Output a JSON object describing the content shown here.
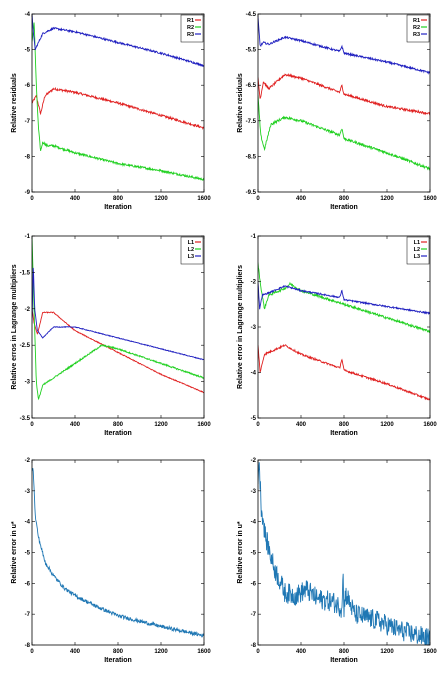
{
  "chart_data": [
    {
      "type": "line",
      "xlabel": "Iteration",
      "ylabel": "Relative residuals",
      "xlim": [
        0,
        1600
      ],
      "ylim": [
        -9,
        -4
      ],
      "xticks": [
        0,
        400,
        800,
        1200,
        1600
      ],
      "yticks": [
        -9,
        -8,
        -7,
        -6,
        -5,
        -4
      ],
      "xtick_labels": [
        "0",
        "400",
        "800",
        "1200",
        "1600"
      ],
      "ytick_labels": [
        "-9",
        "-8",
        "-7",
        "-6",
        "-5",
        "-4"
      ],
      "legend_position": "top-right",
      "series": [
        {
          "name": "R1",
          "color": "#e02020",
          "noise": 0.03,
          "points": [
            [
              0,
              -6.5
            ],
            [
              40,
              -6.3
            ],
            [
              80,
              -6.8
            ],
            [
              120,
              -6.3
            ],
            [
              200,
              -6.1
            ],
            [
              400,
              -6.2
            ],
            [
              800,
              -6.5
            ],
            [
              1200,
              -6.85
            ],
            [
              1600,
              -7.2
            ]
          ]
        },
        {
          "name": "R2",
          "color": "#20d020",
          "noise": 0.03,
          "points": [
            [
              0,
              -4.8
            ],
            [
              20,
              -4.2
            ],
            [
              40,
              -6.0
            ],
            [
              60,
              -7.2
            ],
            [
              80,
              -7.85
            ],
            [
              100,
              -7.6
            ],
            [
              140,
              -7.7
            ],
            [
              200,
              -7.7
            ],
            [
              400,
              -7.9
            ],
            [
              800,
              -8.2
            ],
            [
              1200,
              -8.4
            ],
            [
              1600,
              -8.65
            ]
          ]
        },
        {
          "name": "R3",
          "color": "#2020c0",
          "noise": 0.025,
          "points": [
            [
              0,
              -4.0
            ],
            [
              15,
              -4.6
            ],
            [
              30,
              -5.0
            ],
            [
              60,
              -4.8
            ],
            [
              100,
              -4.55
            ],
            [
              200,
              -4.4
            ],
            [
              400,
              -4.5
            ],
            [
              800,
              -4.8
            ],
            [
              1200,
              -5.1
            ],
            [
              1600,
              -5.45
            ]
          ]
        }
      ]
    },
    {
      "type": "line",
      "xlabel": "Iteration",
      "ylabel": "Relative residuals",
      "xlim": [
        0,
        1600
      ],
      "ylim": [
        -9.5,
        -4.5
      ],
      "xticks": [
        0,
        400,
        800,
        1200,
        1600
      ],
      "yticks": [
        -9.5,
        -8.5,
        -7.5,
        -6.5,
        -5.5,
        -4.5
      ],
      "xtick_labels": [
        "0",
        "400",
        "800",
        "1200",
        "1600"
      ],
      "ytick_labels": [
        "-9.5",
        "-8.5",
        "-7.5",
        "-6.5",
        "-5.5",
        "-4.5"
      ],
      "legend_position": "top-right",
      "series": [
        {
          "name": "R1",
          "color": "#e02020",
          "noise": 0.03,
          "points": [
            [
              0,
              -6.3
            ],
            [
              20,
              -6.9
            ],
            [
              50,
              -6.4
            ],
            [
              100,
              -6.6
            ],
            [
              250,
              -6.2
            ],
            [
              400,
              -6.3
            ],
            [
              760,
              -6.7
            ],
            [
              780,
              -6.5
            ],
            [
              800,
              -6.75
            ],
            [
              1200,
              -7.1
            ],
            [
              1600,
              -7.3
            ]
          ]
        },
        {
          "name": "R2",
          "color": "#20d020",
          "noise": 0.035,
          "points": [
            [
              0,
              -6.8
            ],
            [
              25,
              -7.9
            ],
            [
              60,
              -8.3
            ],
            [
              120,
              -7.6
            ],
            [
              250,
              -7.4
            ],
            [
              400,
              -7.5
            ],
            [
              760,
              -7.9
            ],
            [
              780,
              -7.7
            ],
            [
              800,
              -8.0
            ],
            [
              1200,
              -8.4
            ],
            [
              1600,
              -8.85
            ]
          ]
        },
        {
          "name": "R3",
          "color": "#2020c0",
          "noise": 0.025,
          "points": [
            [
              0,
              -4.6
            ],
            [
              20,
              -5.4
            ],
            [
              50,
              -5.3
            ],
            [
              100,
              -5.35
            ],
            [
              250,
              -5.15
            ],
            [
              400,
              -5.25
            ],
            [
              760,
              -5.55
            ],
            [
              780,
              -5.4
            ],
            [
              800,
              -5.6
            ],
            [
              1200,
              -5.85
            ],
            [
              1600,
              -6.15
            ]
          ]
        }
      ]
    },
    {
      "type": "line",
      "xlabel": "Iteration",
      "ylabel": "Relative erros in Lagrange multipliers",
      "xlim": [
        0,
        1600
      ],
      "ylim": [
        -3.5,
        -1
      ],
      "xticks": [
        0,
        400,
        800,
        1200,
        1600
      ],
      "yticks": [
        -3.5,
        -3,
        -2.5,
        -2,
        -1.5,
        -1
      ],
      "xtick_labels": [
        "0",
        "400",
        "800",
        "1200",
        "1600"
      ],
      "ytick_labels": [
        "-3.5",
        "-3",
        "-2.5",
        "-2",
        "-1.5",
        "-1"
      ],
      "legend_position": "top-right",
      "series": [
        {
          "name": "L1",
          "color": "#e02020",
          "noise": 0.012,
          "points": [
            [
              0,
              -2.0
            ],
            [
              20,
              -2.2
            ],
            [
              50,
              -2.35
            ],
            [
              100,
              -2.05
            ],
            [
              200,
              -2.05
            ],
            [
              400,
              -2.3
            ],
            [
              800,
              -2.6
            ],
            [
              1200,
              -2.9
            ],
            [
              1600,
              -3.15
            ]
          ]
        },
        {
          "name": "L2",
          "color": "#20d020",
          "noise": 0.02,
          "points": [
            [
              0,
              -1.0
            ],
            [
              15,
              -1.8
            ],
            [
              40,
              -3.0
            ],
            [
              60,
              -3.25
            ],
            [
              100,
              -3.05
            ],
            [
              200,
              -2.95
            ],
            [
              400,
              -2.75
            ],
            [
              650,
              -2.5
            ],
            [
              800,
              -2.55
            ],
            [
              1200,
              -2.75
            ],
            [
              1600,
              -2.95
            ]
          ]
        },
        {
          "name": "L3",
          "color": "#2020c0",
          "noise": 0.01,
          "points": [
            [
              0,
              -2.2
            ],
            [
              12,
              -1.4
            ],
            [
              25,
              -2.0
            ],
            [
              50,
              -2.3
            ],
            [
              100,
              -2.4
            ],
            [
              200,
              -2.25
            ],
            [
              400,
              -2.25
            ],
            [
              800,
              -2.4
            ],
            [
              1200,
              -2.55
            ],
            [
              1600,
              -2.7
            ]
          ]
        }
      ]
    },
    {
      "type": "line",
      "xlabel": "Iteration",
      "ylabel": "Relative error in Lagrange multipliers",
      "xlim": [
        0,
        1600
      ],
      "ylim": [
        -5,
        -1
      ],
      "xticks": [
        0,
        400,
        800,
        1200,
        1600
      ],
      "yticks": [
        -5,
        -4,
        -3,
        -2,
        -1
      ],
      "xtick_labels": [
        "0",
        "400",
        "800",
        "1200",
        "1600"
      ],
      "ytick_labels": [
        "-5",
        "-4",
        "-3",
        "-2",
        "-1"
      ],
      "legend_position": "top-right",
      "series": [
        {
          "name": "L1",
          "color": "#e02020",
          "noise": 0.025,
          "points": [
            [
              0,
              -3.4
            ],
            [
              20,
              -4.0
            ],
            [
              60,
              -3.6
            ],
            [
              250,
              -3.4
            ],
            [
              400,
              -3.6
            ],
            [
              760,
              -3.9
            ],
            [
              780,
              -3.7
            ],
            [
              800,
              -3.95
            ],
            [
              1200,
              -4.25
            ],
            [
              1600,
              -4.6
            ]
          ]
        },
        {
          "name": "L2",
          "color": "#20d020",
          "noise": 0.03,
          "points": [
            [
              0,
              -1.6
            ],
            [
              25,
              -2.1
            ],
            [
              60,
              -2.6
            ],
            [
              100,
              -2.3
            ],
            [
              250,
              -2.15
            ],
            [
              300,
              -2.05
            ],
            [
              400,
              -2.2
            ],
            [
              800,
              -2.5
            ],
            [
              1200,
              -2.8
            ],
            [
              1600,
              -3.1
            ]
          ]
        },
        {
          "name": "L3",
          "color": "#2020c0",
          "noise": 0.02,
          "points": [
            [
              0,
              -2.0
            ],
            [
              15,
              -2.6
            ],
            [
              40,
              -2.3
            ],
            [
              100,
              -2.25
            ],
            [
              250,
              -2.1
            ],
            [
              400,
              -2.2
            ],
            [
              760,
              -2.35
            ],
            [
              780,
              -2.2
            ],
            [
              800,
              -2.4
            ],
            [
              1200,
              -2.55
            ],
            [
              1600,
              -2.7
            ]
          ]
        }
      ]
    },
    {
      "type": "line",
      "xlabel": "Iteration",
      "ylabel": "Relative error in u*",
      "xlim": [
        0,
        1600
      ],
      "ylim": [
        -8,
        -2
      ],
      "xticks": [
        0,
        400,
        800,
        1200,
        1600
      ],
      "yticks": [
        -8,
        -7,
        -6,
        -5,
        -4,
        -3,
        -2
      ],
      "xtick_labels": [
        "0",
        "400",
        "800",
        "1200",
        "1600"
      ],
      "ytick_labels": [
        "-8",
        "-7",
        "-6",
        "-5",
        "-4",
        "-3",
        "-2"
      ],
      "series": [
        {
          "color": "#1f77b4",
          "noise": 0.05,
          "points": [
            [
              0,
              -2.3
            ],
            [
              10,
              -2.2
            ],
            [
              30,
              -3.8
            ],
            [
              60,
              -4.5
            ],
            [
              120,
              -5.3
            ],
            [
              200,
              -5.75
            ],
            [
              300,
              -6.15
            ],
            [
              400,
              -6.4
            ],
            [
              600,
              -6.75
            ],
            [
              800,
              -7.05
            ],
            [
              1200,
              -7.4
            ],
            [
              1600,
              -7.7
            ]
          ]
        }
      ]
    },
    {
      "type": "line",
      "xlabel": "Iteration",
      "ylabel": "Relative error in u*",
      "xlim": [
        0,
        1600
      ],
      "ylim": [
        -8,
        -2
      ],
      "xticks": [
        0,
        400,
        800,
        1200,
        1600
      ],
      "yticks": [
        -8,
        -7,
        -6,
        -5,
        -4,
        -3,
        -2
      ],
      "xtick_labels": [
        "0",
        "400",
        "800",
        "1200",
        "1600"
      ],
      "ytick_labels": [
        "-8",
        "-7",
        "-6",
        "-5",
        "-4",
        "-3",
        "-2"
      ],
      "series": [
        {
          "color": "#1f77b4",
          "noise": 0.28,
          "points": [
            [
              0,
              -2.5
            ],
            [
              10,
              -2.0
            ],
            [
              30,
              -3.5
            ],
            [
              70,
              -4.5
            ],
            [
              150,
              -5.5
            ],
            [
              250,
              -6.3
            ],
            [
              350,
              -6.4
            ],
            [
              450,
              -6.2
            ],
            [
              550,
              -6.5
            ],
            [
              700,
              -6.6
            ],
            [
              780,
              -6.8
            ],
            [
              790,
              -5.5
            ],
            [
              800,
              -7.0
            ],
            [
              810,
              -6.3
            ],
            [
              900,
              -7.0
            ],
            [
              1100,
              -7.2
            ],
            [
              1300,
              -7.5
            ],
            [
              1500,
              -7.7
            ],
            [
              1600,
              -7.8
            ]
          ]
        }
      ]
    }
  ]
}
